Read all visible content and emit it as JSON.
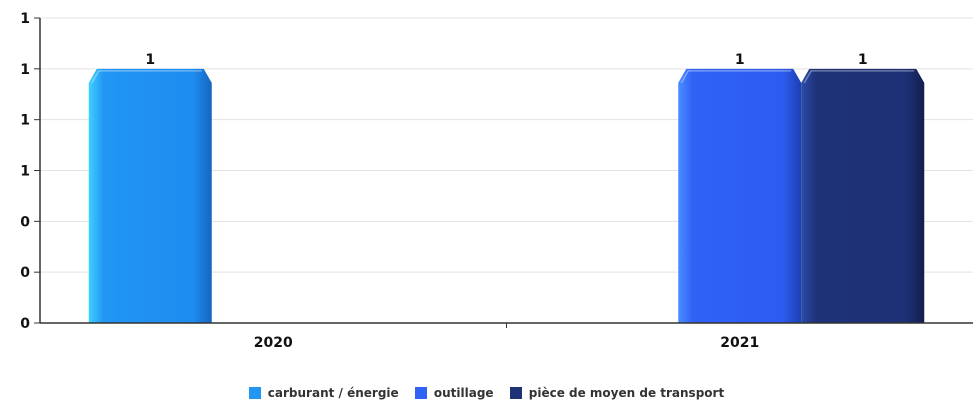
{
  "chart_data": {
    "type": "bar",
    "categories": [
      "2020",
      "2021"
    ],
    "y_tick_labels": [
      "0",
      "0",
      "0",
      "1",
      "1",
      "1",
      "1"
    ],
    "ylim": [
      0,
      1.2
    ],
    "grid": true,
    "legend_position": "bottom",
    "series": [
      {
        "name": "carburant / énergie",
        "color": "#2196f3",
        "values": [
          1,
          null
        ],
        "data_labels": [
          "1",
          ""
        ]
      },
      {
        "name": "outillage",
        "color": "#2f62f5",
        "values": [
          null,
          1
        ],
        "data_labels": [
          "",
          "1"
        ]
      },
      {
        "name": "pièce de moyen de transport",
        "color": "#1e3278",
        "values": [
          null,
          1
        ],
        "data_labels": [
          "",
          "1"
        ]
      }
    ]
  }
}
